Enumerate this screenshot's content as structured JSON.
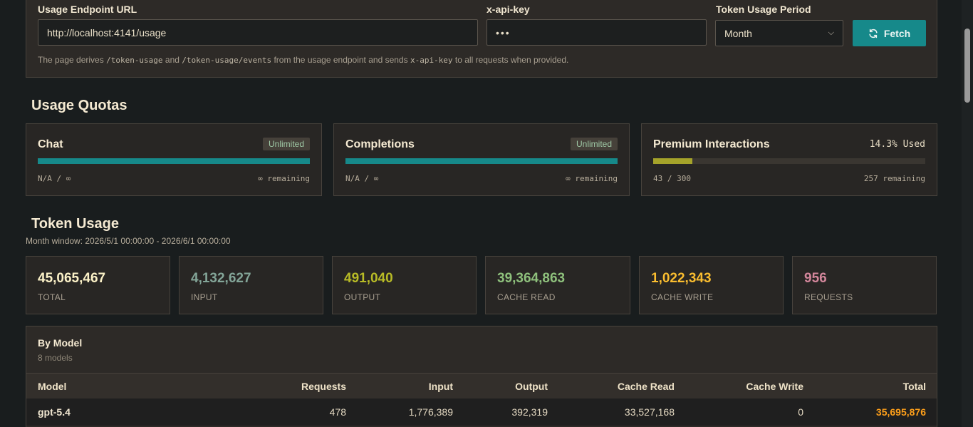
{
  "config": {
    "endpoint_label": "Usage Endpoint URL",
    "endpoint_value": "http://localhost:4141/usage",
    "api_key_label": "x-api-key",
    "api_key_value": "•••",
    "period_label": "Token Usage Period",
    "period_value": "Month",
    "fetch_label": "Fetch",
    "hint_pre": "The page derives",
    "hint_code1": "/token-usage",
    "hint_and": "and",
    "hint_code2": "/token-usage/events",
    "hint_mid": "from the usage endpoint and sends",
    "hint_code3": "x-api-key",
    "hint_post": "to all requests when provided."
  },
  "quotas": {
    "title": "Usage Quotas",
    "items": [
      {
        "name": "Chat",
        "badge": "Unlimited",
        "used": "N/A / ∞",
        "remaining": "∞ remaining",
        "fill": 1.0
      },
      {
        "name": "Completions",
        "badge": "Unlimited",
        "used": "N/A / ∞",
        "remaining": "∞ remaining",
        "fill": 1.0
      },
      {
        "name": "Premium Interactions",
        "pct": "14.3% Used",
        "used": "43 / 300",
        "remaining": "257 remaining",
        "fill": 0.143
      }
    ]
  },
  "token_usage": {
    "title": "Token Usage",
    "window": "Month window: 2026/5/1 00:00:00 - 2026/6/1 00:00:00",
    "stats": [
      {
        "value": "45,065,467",
        "label": "TOTAL"
      },
      {
        "value": "4,132,627",
        "label": "INPUT"
      },
      {
        "value": "491,040",
        "label": "OUTPUT"
      },
      {
        "value": "39,364,863",
        "label": "CACHE READ"
      },
      {
        "value": "1,022,343",
        "label": "CACHE WRITE"
      },
      {
        "value": "956",
        "label": "REQUESTS"
      }
    ]
  },
  "by_model": {
    "title": "By Model",
    "subtitle": "8 models",
    "headers": [
      "Model",
      "Requests",
      "Input",
      "Output",
      "Cache Read",
      "Cache Write",
      "Total"
    ],
    "rows": [
      [
        "gpt-5.4",
        "478",
        "1,776,389",
        "392,319",
        "33,527,168",
        "0",
        "35,695,876"
      ]
    ]
  },
  "colors": {
    "accent": "#16898a",
    "premium_bar": "#a5a32a",
    "total": "#fbf1c7",
    "input": "#83a598",
    "output": "#b8bb26",
    "cache_read": "#8ec07c",
    "cache_write": "#fabd2f",
    "requests": "#d3869b",
    "row_total": "#fe9f1a"
  }
}
